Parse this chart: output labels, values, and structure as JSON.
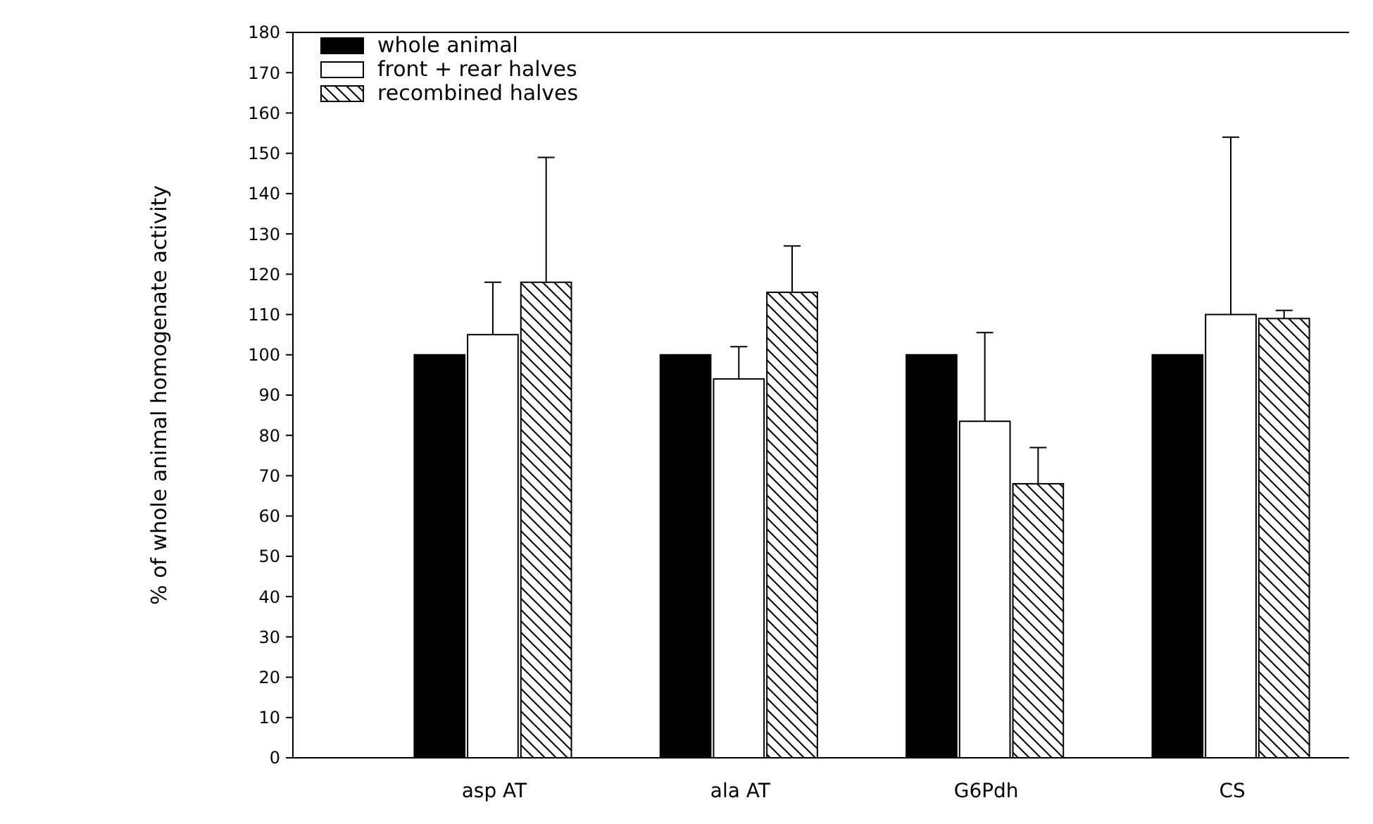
{
  "chart_data": {
    "type": "bar",
    "ylabel": "% of whole animal homogenate activity",
    "categories": [
      "asp AT",
      "ala AT",
      "G6Pdh",
      "CS"
    ],
    "series": [
      {
        "name": "whole animal",
        "color": "#000000",
        "values": [
          100,
          100,
          100,
          100
        ]
      },
      {
        "name": "front + rear halves",
        "color": "#ffffff",
        "values": [
          105,
          94,
          83.5,
          110
        ],
        "errors": [
          [
            105,
            118
          ],
          [
            94,
            102
          ],
          [
            83.5,
            105.5
          ],
          [
            110,
            154
          ]
        ]
      },
      {
        "name": "recombined halves",
        "color": "#000000",
        "values": [
          118,
          115.5,
          68,
          109
        ],
        "errors": [
          [
            118,
            149
          ],
          [
            115.5,
            127
          ],
          [
            68,
            77
          ],
          [
            109,
            111
          ]
        ]
      }
    ],
    "ylim": [
      0,
      180
    ],
    "yticks": [
      0,
      10,
      20,
      30,
      40,
      50,
      60,
      70,
      80,
      90,
      100,
      110,
      120,
      130,
      140,
      150,
      160,
      170,
      180
    ],
    "legend": "top left",
    "grid": false
  }
}
